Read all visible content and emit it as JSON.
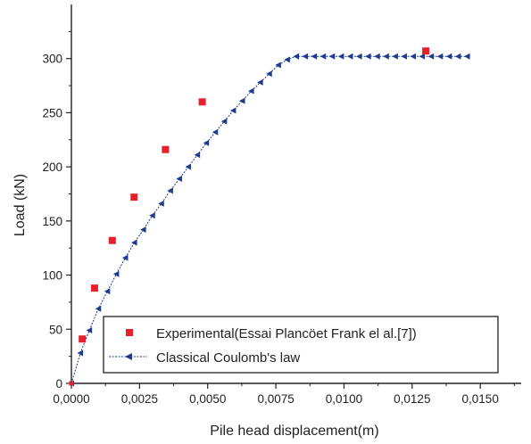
{
  "chart_data": {
    "type": "scatter",
    "xlabel": "Pile head displacement(m)",
    "ylabel": "Load (kN)",
    "xlim": [
      0,
      0.0165
    ],
    "ylim": [
      0,
      350
    ],
    "x_ticks": [
      0,
      0.0025,
      0.005,
      0.0075,
      0.01,
      0.0125,
      0.015
    ],
    "x_tick_labels": [
      "0,0000",
      "0,0025",
      "0,0050",
      "0,0075",
      "0,0100",
      "0,0125",
      "0,0150"
    ],
    "y_ticks": [
      0,
      50,
      100,
      150,
      200,
      250,
      300
    ],
    "y_tick_labels": [
      "0",
      "50",
      "100",
      "150",
      "200",
      "250",
      "300"
    ],
    "legend_position": "bottom-right",
    "series": [
      {
        "name": "Experimental(Essai Plancöet Frank el al.[7])",
        "marker": "square",
        "color": "#e8202a",
        "points": [
          [
            0.0,
            0
          ],
          [
            0.0004,
            41
          ],
          [
            0.00085,
            88
          ],
          [
            0.0015,
            132
          ],
          [
            0.0023,
            172
          ],
          [
            0.00345,
            216
          ],
          [
            0.0048,
            260
          ],
          [
            0.013,
            307
          ]
        ]
      },
      {
        "name": "Classical Coulomb's law",
        "marker": "triangle-left",
        "line": "dotted",
        "color": "#1f3b8f",
        "points": [
          [
            0.0,
            0
          ],
          [
            0.00033,
            28
          ],
          [
            0.00066,
            49
          ],
          [
            0.00099,
            69
          ],
          [
            0.00132,
            85
          ],
          [
            0.00165,
            101
          ],
          [
            0.00198,
            116
          ],
          [
            0.00231,
            130
          ],
          [
            0.00264,
            142
          ],
          [
            0.00297,
            155
          ],
          [
            0.0033,
            166
          ],
          [
            0.00363,
            178
          ],
          [
            0.00396,
            189
          ],
          [
            0.00429,
            200
          ],
          [
            0.00462,
            211
          ],
          [
            0.00495,
            222
          ],
          [
            0.00528,
            232
          ],
          [
            0.00561,
            242
          ],
          [
            0.00594,
            252
          ],
          [
            0.00627,
            261
          ],
          [
            0.0066,
            270
          ],
          [
            0.00693,
            278
          ],
          [
            0.00726,
            286
          ],
          [
            0.00759,
            294
          ],
          [
            0.00792,
            299
          ],
          [
            0.00825,
            302
          ],
          [
            0.00858,
            302
          ],
          [
            0.00891,
            302
          ],
          [
            0.00924,
            302
          ],
          [
            0.00957,
            302
          ],
          [
            0.0099,
            302
          ],
          [
            0.01023,
            302
          ],
          [
            0.01056,
            302
          ],
          [
            0.01089,
            302
          ],
          [
            0.01122,
            302
          ],
          [
            0.01155,
            302
          ],
          [
            0.01188,
            302
          ],
          [
            0.01221,
            302
          ],
          [
            0.01254,
            302
          ],
          [
            0.01287,
            302
          ],
          [
            0.0132,
            302
          ],
          [
            0.01353,
            302
          ],
          [
            0.01386,
            302
          ],
          [
            0.01419,
            302
          ],
          [
            0.01452,
            302
          ]
        ]
      }
    ]
  }
}
